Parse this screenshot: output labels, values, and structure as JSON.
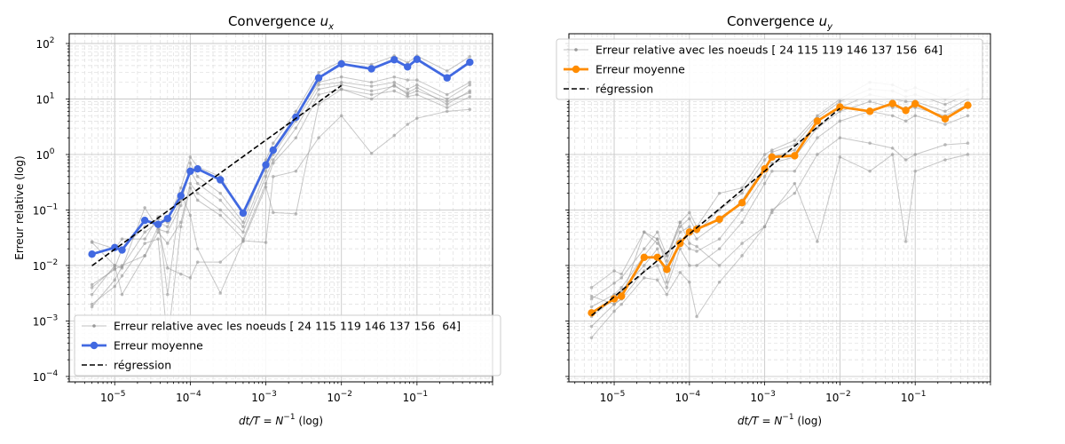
{
  "chart_data": [
    {
      "type": "line",
      "title": "Convergence",
      "title_var": "u",
      "title_sub": "x",
      "xlabel_math": "dt/T = N",
      "xlabel_exp": "−1",
      "xlabel_suffix": " (log)",
      "ylabel": "Erreur relative (log)",
      "xscale": "log",
      "yscale": "log",
      "xlim": [
        2.5e-06,
        1.0
      ],
      "ylim": [
        8e-05,
        150
      ],
      "grid": true,
      "legend_position": "lower-left",
      "x_ticks": [
        {
          "base": "10",
          "exp": "−5"
        },
        {
          "base": "10",
          "exp": "−4"
        },
        {
          "base": "10",
          "exp": "−3"
        },
        {
          "base": "10",
          "exp": "−2"
        },
        {
          "base": "10",
          "exp": "−1"
        }
      ],
      "y_ticks": [
        {
          "base": "10",
          "exp": "−4"
        },
        {
          "base": "10",
          "exp": "−3"
        },
        {
          "base": "10",
          "exp": "−2"
        },
        {
          "base": "10",
          "exp": "−1"
        },
        {
          "base": "10",
          "exp": "0"
        },
        {
          "base": "10",
          "exp": "1"
        },
        {
          "base": "10",
          "exp": "2"
        }
      ],
      "x": [
        5e-06,
        1e-05,
        1.25e-05,
        2.5e-05,
        3.75e-05,
        5e-05,
        7.5e-05,
        0.0001,
        0.000125,
        0.00025,
        0.0005,
        0.001,
        0.00125,
        0.0025,
        0.005,
        0.01,
        0.025,
        0.05,
        0.075,
        0.1,
        0.25,
        0.5
      ],
      "series": [
        {
          "name": "Erreur relative avec les noeuds [ 24 115 119 146 137 156  64]",
          "role": "nodes",
          "color": "#999999",
          "nodes": [
            [
              0.026,
              0.01,
              0.009,
              0.11,
              0.045,
              0.04,
              0.12,
              0.7,
              0.4,
              0.2,
              0.06,
              0.8,
              1.6,
              6.0,
              30,
              48,
              42,
              60,
              45,
              60,
              32,
              58
            ],
            [
              0.004,
              0.009,
              0.02,
              0.05,
              0.07,
              0.06,
              0.25,
              0.9,
              0.6,
              0.4,
              0.08,
              0.6,
              1.3,
              5.0,
              20,
              25,
              20,
              25,
              22,
              22,
              12,
              20
            ],
            [
              0.0018,
              0.0055,
              0.0095,
              0.04,
              0.06,
              0.05,
              0.15,
              0.5,
              0.3,
              0.15,
              0.05,
              0.5,
              1.0,
              4.0,
              18,
              20,
              17,
              20,
              15,
              18,
              10,
              18
            ],
            [
              0.003,
              0.01,
              0.003,
              0.015,
              0.04,
              0.025,
              0.06,
              0.3,
              0.2,
              0.1,
              0.04,
              0.4,
              0.8,
              3.0,
              15,
              18,
              14,
              17,
              13,
              16,
              8,
              14
            ],
            [
              0.002,
              0.0042,
              0.0065,
              0.025,
              0.03,
              0.0004,
              0.05,
              0.25,
              0.15,
              0.08,
              0.03,
              0.3,
              0.7,
              2.0,
              12,
              15,
              12,
              14,
              11,
              12,
              7,
              11
            ],
            [
              0.0045,
              0.0085,
              0.01,
              0.015,
              0.05,
              0.009,
              0.007,
              0.006,
              0.0115,
              0.0115,
              0.027,
              0.26,
              0.09,
              0.085,
              8,
              15,
              10,
              18,
              12,
              14,
              9,
              13
            ],
            [
              0.027,
              0.02,
              0.03,
              0.03,
              0.075,
              0.003,
              0.2,
              0.08,
              0.02,
              0.0032,
              0.028,
              0.026,
              0.4,
              0.5,
              2.0,
              5.0,
              1.05,
              2.2,
              3.5,
              4.5,
              6.0,
              6.5
            ]
          ]
        },
        {
          "name": "Erreur moyenne",
          "role": "mean",
          "color": "#4169E1",
          "values": [
            0.016,
            0.021,
            0.019,
            0.065,
            0.055,
            0.07,
            0.18,
            0.5,
            0.55,
            0.35,
            0.088,
            0.65,
            1.2,
            4.7,
            24,
            43,
            35,
            51,
            38,
            52,
            24,
            46
          ]
        },
        {
          "name": "régression",
          "role": "regression",
          "color": "#000000",
          "x": [
            5e-06,
            0.01
          ],
          "values": [
            0.0099,
            17.5
          ]
        }
      ]
    },
    {
      "type": "line",
      "title": "Convergence",
      "title_var": "u",
      "title_sub": "y",
      "xlabel_math": "dt/T = N",
      "xlabel_exp": "−1",
      "xlabel_suffix": " (log)",
      "ylabel": "",
      "xscale": "log",
      "yscale": "log",
      "xlim": [
        2.5e-06,
        1.0
      ],
      "ylim": [
        8e-05,
        150
      ],
      "grid": true,
      "sharey": true,
      "legend_position": "upper-left",
      "x_ticks": [
        {
          "base": "10",
          "exp": "−5"
        },
        {
          "base": "10",
          "exp": "−4"
        },
        {
          "base": "10",
          "exp": "−3"
        },
        {
          "base": "10",
          "exp": "−2"
        },
        {
          "base": "10",
          "exp": "−1"
        }
      ],
      "x": [
        5e-06,
        1e-05,
        1.25e-05,
        2.5e-05,
        3.75e-05,
        5e-05,
        7.5e-05,
        0.0001,
        0.000125,
        0.00025,
        0.0005,
        0.001,
        0.00125,
        0.0025,
        0.005,
        0.01,
        0.025,
        0.05,
        0.075,
        0.1,
        0.25,
        0.5
      ],
      "series": [
        {
          "name": "Erreur relative avec les noeuds [ 24 115 119 146 137 156  64]",
          "role": "nodes",
          "color": "#999999",
          "nodes": [
            [
              0.004,
              0.008,
              0.007,
              0.04,
              0.03,
              0.012,
              0.06,
              0.09,
              0.05,
              0.2,
              0.25,
              1.0,
              1.2,
              1.8,
              5.0,
              10,
              20,
              18,
              14,
              16,
              10,
              15
            ],
            [
              0.0025,
              0.0048,
              0.006,
              0.02,
              0.04,
              0.015,
              0.05,
              0.07,
              0.04,
              0.1,
              0.2,
              0.8,
              1.1,
              1.5,
              4.5,
              9,
              15,
              14,
              11,
              12,
              8,
              12
            ],
            [
              0.0018,
              0.003,
              0.004,
              0.015,
              0.03,
              0.01,
              0.04,
              0.05,
              0.03,
              0.06,
              0.15,
              0.6,
              0.9,
              1.2,
              4.0,
              7,
              12,
              10,
              9,
              9,
              6,
              10
            ],
            [
              0.0012,
              0.0025,
              0.0035,
              0.01,
              0.02,
              0.005,
              0.03,
              0.02,
              0.018,
              0.03,
              0.1,
              0.4,
              0.7,
              0.9,
              3.0,
              6,
              9,
              7,
              7,
              7,
              5,
              8
            ],
            [
              0.0008,
              0.002,
              0.0025,
              0.008,
              0.01,
              0.004,
              0.02,
              0.01,
              0.01,
              0.02,
              0.06,
              0.3,
              0.5,
              0.5,
              2.0,
              4,
              6,
              5,
              4,
              5,
              3.5,
              5
            ],
            [
              0.0005,
              0.0015,
              0.002,
              0.006,
              0.0055,
              0.003,
              0.0075,
              0.005,
              0.0012,
              0.005,
              0.015,
              0.05,
              0.1,
              0.2,
              1.0,
              2,
              1.6,
              1.3,
              0.8,
              1.0,
              1.5,
              1.6
            ],
            [
              0.0028,
              0.002,
              0.0025,
              0.04,
              0.025,
              0.015,
              0.06,
              0.025,
              0.022,
              0.01,
              0.025,
              0.05,
              0.09,
              0.3,
              0.027,
              0.9,
              0.5,
              1.0,
              0.027,
              0.5,
              0.8,
              1.0
            ]
          ]
        },
        {
          "name": "Erreur moyenne",
          "role": "mean",
          "color": "#FF8C00",
          "values": [
            0.0014,
            0.0025,
            0.0028,
            0.014,
            0.014,
            0.0085,
            0.025,
            0.04,
            0.045,
            0.068,
            0.135,
            0.55,
            0.9,
            0.95,
            4.0,
            7.2,
            6.0,
            8.3,
            6.2,
            8.2,
            4.4,
            7.7
          ]
        },
        {
          "name": "régression",
          "role": "regression",
          "color": "#000000",
          "x": [
            5e-06,
            0.01
          ],
          "values": [
            0.00125,
            6.8
          ]
        }
      ]
    }
  ]
}
